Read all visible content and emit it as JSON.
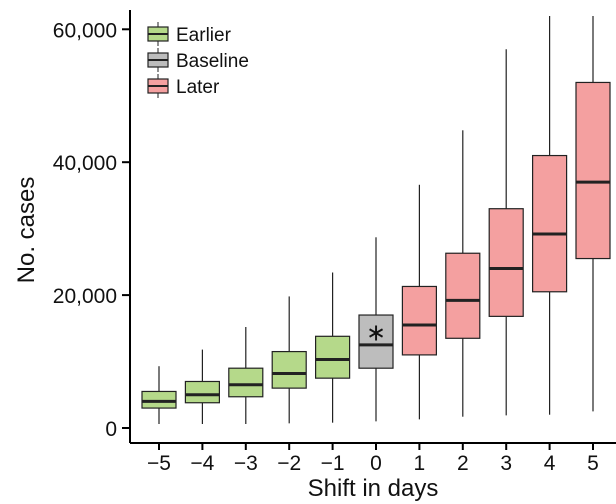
{
  "chart_data": {
    "type": "box",
    "xlabel": "Shift in days",
    "ylabel": "No. cases",
    "ylim": [
      0,
      62000
    ],
    "y_ticks": [
      0,
      20000,
      40000,
      60000
    ],
    "y_tick_labels": [
      "0",
      "20,000",
      "40,000",
      "60,000"
    ],
    "categories": [
      "−5",
      "−4",
      "−3",
      "−2",
      "−1",
      "0",
      "1",
      "2",
      "3",
      "4",
      "5"
    ],
    "legend": {
      "position": "top-left",
      "items": [
        {
          "label": "Earlier",
          "color": "#b5d98a"
        },
        {
          "label": "Baseline",
          "color": "#bdbdbd"
        },
        {
          "label": "Later",
          "color": "#f4a0a0"
        }
      ]
    },
    "boxes": [
      {
        "x": "−5",
        "group": "Earlier",
        "min": 600,
        "q1": 3000,
        "median": 4000,
        "q3": 5500,
        "max": 9300
      },
      {
        "x": "−4",
        "group": "Earlier",
        "min": 600,
        "q1": 3800,
        "median": 5000,
        "q3": 7000,
        "max": 11800
      },
      {
        "x": "−3",
        "group": "Earlier",
        "min": 600,
        "q1": 4700,
        "median": 6500,
        "q3": 9000,
        "max": 15200
      },
      {
        "x": "−2",
        "group": "Earlier",
        "min": 700,
        "q1": 6000,
        "median": 8200,
        "q3": 11500,
        "max": 19800
      },
      {
        "x": "−1",
        "group": "Earlier",
        "min": 800,
        "q1": 7500,
        "median": 10300,
        "q3": 13800,
        "max": 23400
      },
      {
        "x": "0",
        "group": "Baseline",
        "min": 1000,
        "q1": 9000,
        "median": 12500,
        "q3": 17000,
        "max": 28700,
        "marker": 14500
      },
      {
        "x": "1",
        "group": "Later",
        "min": 1300,
        "q1": 11000,
        "median": 15500,
        "q3": 21300,
        "max": 36600
      },
      {
        "x": "2",
        "group": "Later",
        "min": 1700,
        "q1": 13500,
        "median": 19200,
        "q3": 26300,
        "max": 44800
      },
      {
        "x": "3",
        "group": "Later",
        "min": 1900,
        "q1": 16800,
        "median": 24000,
        "q3": 33000,
        "max": 57000
      },
      {
        "x": "4",
        "group": "Later",
        "min": 2000,
        "q1": 20500,
        "median": 29200,
        "q3": 41000,
        "max": 62000
      },
      {
        "x": "5",
        "group": "Later",
        "min": 2500,
        "q1": 25500,
        "median": 37000,
        "q3": 52000,
        "max": 62000
      }
    ],
    "grid": false
  }
}
